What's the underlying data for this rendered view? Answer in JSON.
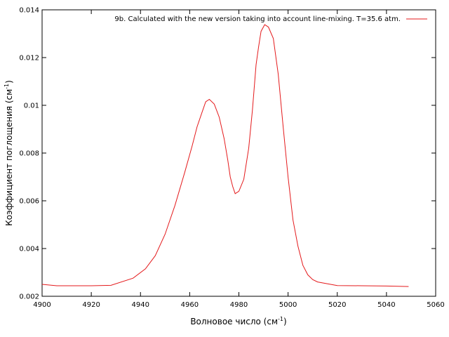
{
  "chart_data": {
    "type": "line",
    "xlabel": {
      "main": "Волновое число (см",
      "sup": "-1",
      "end": ")"
    },
    "ylabel": {
      "main": "Коэффициент поглощения (см",
      "sup": "-1",
      "end": ")"
    },
    "xlim": [
      4900,
      5060
    ],
    "ylim": [
      0.002,
      0.014
    ],
    "xticks": [
      4900,
      4920,
      4940,
      4960,
      4980,
      5000,
      5020,
      5040,
      5060
    ],
    "yticks": [
      0.002,
      0.004,
      0.006,
      0.008,
      0.01,
      0.012,
      0.014
    ],
    "ytick_labels": [
      "0.002",
      "0.004",
      "0.006",
      "0.008",
      "0.01",
      "0.012",
      "0.014"
    ],
    "grid": false,
    "legend_position": "top-right",
    "series": [
      {
        "name": "9b. Calculated with the new version taking into account line-mixing. T=35.6 atm.",
        "color": "#e41a1c",
        "x": [
          4900,
          4906,
          4920,
          4928,
          4937,
          4942,
          4946,
          4950,
          4954,
          4958,
          4961,
          4963,
          4965,
          4966.5,
          4968,
          4970,
          4972,
          4974,
          4975.5,
          4976.5,
          4977.5,
          4978.5,
          4980,
          4982,
          4984,
          4985.5,
          4987,
          4988,
          4989,
          4990.5,
          4992,
          4994,
          4996,
          4998,
          5000,
          5002,
          5004,
          5006,
          5008,
          5010,
          5012,
          5020,
          5030,
          5040,
          5049
        ],
        "y": [
          0.0025,
          0.00244,
          0.00244,
          0.00246,
          0.00276,
          0.00315,
          0.0037,
          0.0046,
          0.0058,
          0.0072,
          0.0083,
          0.0091,
          0.0097,
          0.01015,
          0.01025,
          0.01005,
          0.0095,
          0.0086,
          0.0077,
          0.007,
          0.0066,
          0.0063,
          0.0064,
          0.0069,
          0.0082,
          0.0098,
          0.0117,
          0.01245,
          0.0131,
          0.01338,
          0.01328,
          0.0128,
          0.0113,
          0.0091,
          0.007,
          0.0052,
          0.0041,
          0.0033,
          0.0029,
          0.0027,
          0.0026,
          0.00245,
          0.00244,
          0.00243,
          0.00241
        ]
      }
    ]
  }
}
